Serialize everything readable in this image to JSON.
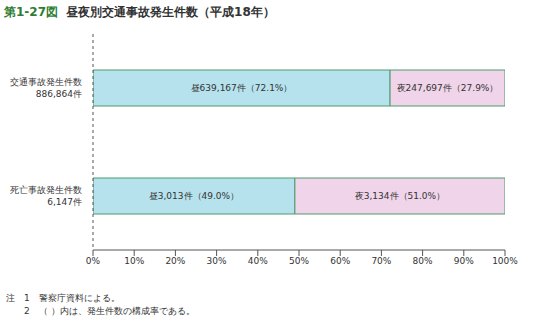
{
  "chart_data": {
    "type": "bar",
    "orientation": "horizontal",
    "stacked": true,
    "figure_number": "第1-27図",
    "title": "昼夜別交通事故発生件数（平成18年）",
    "categories": [
      "交通事故発生件数\n886,864件",
      "死亡事故発生件数\n6,147件"
    ],
    "series": [
      {
        "name": "昼",
        "color": "#b6e2ee",
        "values": [
          72.1,
          49.0
        ],
        "value_labels": [
          "昼639,167件（72.1%）",
          "昼3,013件（49.0%）"
        ]
      },
      {
        "name": "夜",
        "color": "#f0d4ea",
        "values": [
          27.9,
          51.0
        ],
        "value_labels": [
          "夜247,697件（27.9%）",
          "夜3,134件（51.0%）"
        ]
      }
    ],
    "xlim": [
      0,
      100
    ],
    "xticks": [
      {
        "value": 0,
        "label": "0%"
      },
      {
        "value": 10,
        "label": "10%"
      },
      {
        "value": 20,
        "label": "20%"
      },
      {
        "value": 30,
        "label": "30%"
      },
      {
        "value": 40,
        "label": "40%"
      },
      {
        "value": 50,
        "label": "50%"
      },
      {
        "value": 60,
        "label": "60%"
      },
      {
        "value": 70,
        "label": "70%"
      },
      {
        "value": 80,
        "label": "80%"
      },
      {
        "value": 90,
        "label": "90%"
      },
      {
        "value": 100,
        "label": "100%"
      }
    ],
    "grid": false,
    "data_labels": true,
    "notes": [
      "注　1　警察庁資料による。",
      "　　2　（ ）内は、発生件数の構成率である。"
    ]
  }
}
